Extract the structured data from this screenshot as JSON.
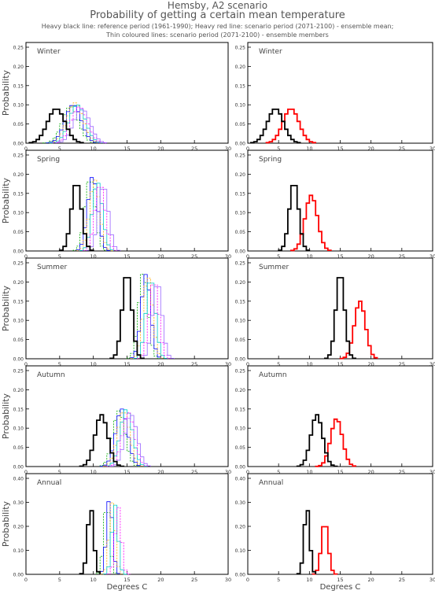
{
  "header": {
    "title": "Hemsby, A2 scenario",
    "subtitle": "Probability of getting a certain mean temperature",
    "legend_line1": "Heavy black line: reference period (1961-1990); Heavy red line: scenario period (2071-2100) - ensemble mean;",
    "legend_line2": "Thin coloured lines: scenario period (2071-2100) - ensemble members"
  },
  "chart_data": {
    "type": "line",
    "xlabel": "Degrees C",
    "ylabel": "Probability",
    "xlim": [
      0,
      30
    ],
    "xticks": [
      0,
      5,
      10,
      15,
      20,
      25,
      30
    ],
    "colors": {
      "reference": "#000000",
      "scenario_mean": "#ff0000",
      "members": [
        "#00aa00",
        "#0000ff",
        "#ffaa00",
        "#00cccc",
        "#ff00ff",
        "#9966ff",
        "#888800",
        "#aa66ff",
        "#33aa88",
        "#cc9933"
      ]
    },
    "panels": [
      {
        "season": "Winter",
        "yticks": [
          0,
          0.05,
          0.1,
          0.15,
          0.2,
          0.25
        ],
        "ylim": [
          0,
          0.25
        ],
        "reference": {
          "mean": 4.5,
          "sd": 1.3,
          "peak": 0.09
        },
        "scenario_mean": {
          "mean": 7.0,
          "sd": 1.3,
          "peak": 0.09
        },
        "members": [
          {
            "mean": 6.6,
            "peak": 0.095
          },
          {
            "mean": 7.0,
            "peak": 0.1
          },
          {
            "mean": 7.3,
            "peak": 0.105
          },
          {
            "mean": 7.6,
            "peak": 0.1
          },
          {
            "mean": 7.9,
            "peak": 0.095
          },
          {
            "mean": 8.3,
            "peak": 0.09
          }
        ],
        "member_sd": 1.2
      },
      {
        "season": "Spring",
        "yticks": [
          0,
          0.05,
          0.1,
          0.15,
          0.2,
          0.25
        ],
        "ylim": [
          0,
          0.25
        ],
        "reference": {
          "mean": 7.5,
          "sd": 0.75,
          "peak": 0.18
        },
        "scenario_mean": {
          "mean": 10.3,
          "sd": 1.0,
          "peak": 0.145
        },
        "members": [
          {
            "mean": 9.5,
            "peak": 0.19
          },
          {
            "mean": 9.9,
            "peak": 0.195
          },
          {
            "mean": 10.2,
            "peak": 0.185
          },
          {
            "mean": 10.6,
            "peak": 0.18
          },
          {
            "mean": 11.0,
            "peak": 0.175
          },
          {
            "mean": 11.5,
            "peak": 0.17
          }
        ],
        "member_sd": 0.75
      },
      {
        "season": "Summer",
        "yticks": [
          0,
          0.05,
          0.1,
          0.15,
          0.2,
          0.25
        ],
        "ylim": [
          0,
          0.25
        ],
        "reference": {
          "mean": 15.0,
          "sd": 0.7,
          "peak": 0.225
        },
        "scenario_mean": {
          "mean": 18.2,
          "sd": 0.9,
          "peak": 0.15
        },
        "members": [
          {
            "mean": 17.4,
            "peak": 0.225
          },
          {
            "mean": 17.8,
            "peak": 0.22
          },
          {
            "mean": 18.1,
            "peak": 0.215
          },
          {
            "mean": 18.5,
            "peak": 0.21
          },
          {
            "mean": 19.0,
            "peak": 0.205
          },
          {
            "mean": 19.5,
            "peak": 0.2
          }
        ],
        "member_sd": 0.7
      },
      {
        "season": "Autumn",
        "yticks": [
          0,
          0.05,
          0.1,
          0.15,
          0.2,
          0.25
        ],
        "ylim": [
          0,
          0.25
        ],
        "reference": {
          "mean": 11.2,
          "sd": 0.95,
          "peak": 0.135
        },
        "scenario_mean": {
          "mean": 14.4,
          "sd": 0.95,
          "peak": 0.125
        },
        "members": [
          {
            "mean": 13.8,
            "peak": 0.145
          },
          {
            "mean": 14.2,
            "peak": 0.15
          },
          {
            "mean": 14.5,
            "peak": 0.145
          },
          {
            "mean": 14.9,
            "peak": 0.15
          },
          {
            "mean": 15.2,
            "peak": 0.14
          },
          {
            "mean": 15.6,
            "peak": 0.135
          }
        ],
        "member_sd": 0.9
      },
      {
        "season": "Annual",
        "yticks": [
          0,
          0.1,
          0.2,
          0.3,
          0.4
        ],
        "ylim": [
          0,
          0.4
        ],
        "reference": {
          "mean": 9.6,
          "sd": 0.45,
          "peak": 0.28
        },
        "scenario_mean": {
          "mean": 12.5,
          "sd": 0.55,
          "peak": 0.22
        },
        "members": [
          {
            "mean": 12.0,
            "peak": 0.3
          },
          {
            "mean": 12.4,
            "peak": 0.32
          },
          {
            "mean": 12.8,
            "peak": 0.3
          },
          {
            "mean": 13.2,
            "peak": 0.29
          },
          {
            "mean": 13.7,
            "peak": 0.28
          }
        ],
        "member_sd": 0.45
      }
    ]
  }
}
